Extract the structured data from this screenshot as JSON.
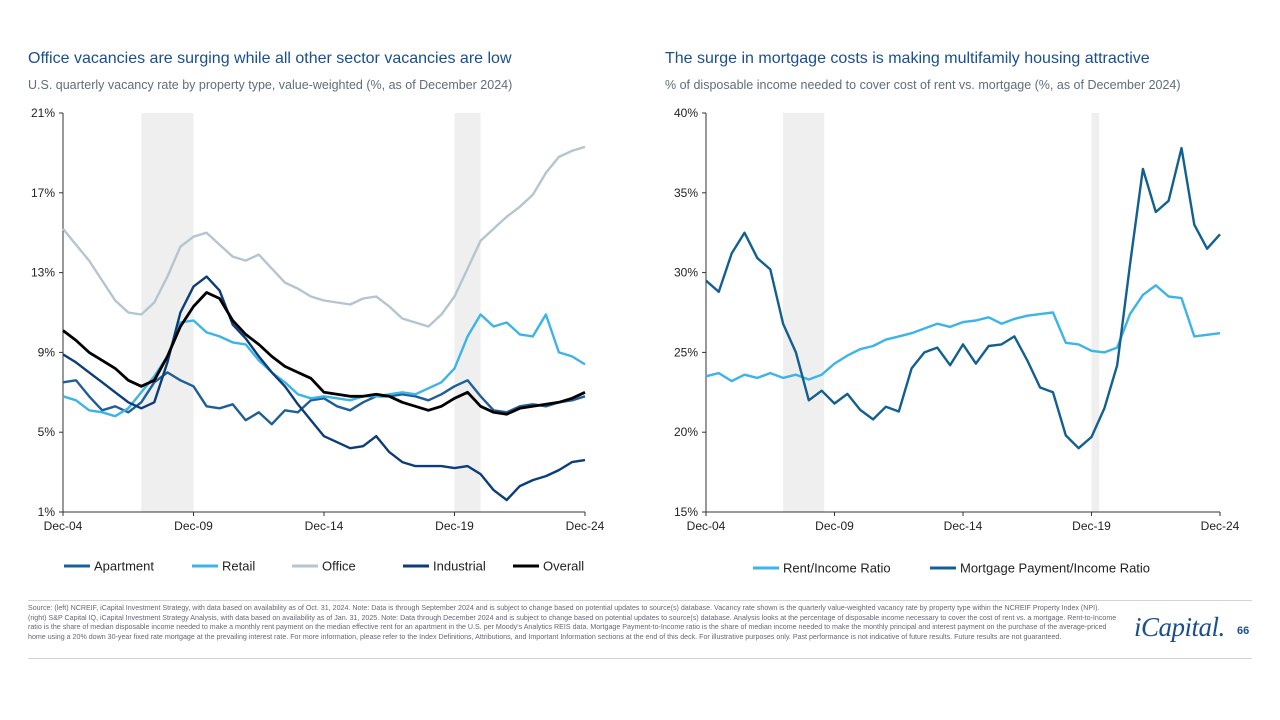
{
  "left": {
    "title": "Office vacancies are surging while all other sector vacancies are low",
    "subtitle": "U.S. quarterly vacancy rate by property type, value-weighted (%, as of December 2024)"
  },
  "right": {
    "title": "The surge in mortgage costs is making multifamily housing attractive",
    "subtitle": "% of disposable income needed to cover cost of rent vs. mortgage (%, as of December 2024)"
  },
  "colors": {
    "apartment": "#1f5f99",
    "retail": "#3cb4e6",
    "office": "#b5c5d0",
    "industrial": "#0c3d78",
    "overall": "#000000",
    "rent_income": "#3cb4e6",
    "mortgage_income": "#12608f",
    "recession": "#efefef",
    "title": "#1a4f8c"
  },
  "chart_data": [
    {
      "type": "line",
      "title": "Office vacancies are surging while all other sector vacancies are low",
      "subtitle": "U.S. quarterly vacancy rate by property type, value-weighted (%, as of December 2024)",
      "xlabel": "",
      "ylabel": "",
      "xlim": [
        2005,
        2025
      ],
      "ylim": [
        1,
        21
      ],
      "yticks": [
        1,
        5,
        9,
        13,
        17,
        21
      ],
      "ytick_labels": [
        "1%",
        "5%",
        "9%",
        "13%",
        "17%",
        "21%"
      ],
      "xticks": [
        2005,
        2010,
        2015,
        2020,
        2025
      ],
      "xtick_labels": [
        "Dec-04",
        "Dec-09",
        "Dec-14",
        "Dec-19",
        "Dec-24"
      ],
      "shaded_periods": [
        [
          2008,
          2010
        ],
        [
          2020,
          2021
        ]
      ],
      "legend_position": "bottom",
      "series": [
        {
          "name": "Apartment",
          "color_key": "apartment",
          "x": [
            2005,
            2005.5,
            2006,
            2006.5,
            2007,
            2007.5,
            2008,
            2008.5,
            2009,
            2009.5,
            2010,
            2010.5,
            2011,
            2011.5,
            2012,
            2012.5,
            2013,
            2013.5,
            2014,
            2014.5,
            2015,
            2015.5,
            2016,
            2016.5,
            2017,
            2017.5,
            2018,
            2018.5,
            2019,
            2019.5,
            2020,
            2020.5,
            2021,
            2021.5,
            2022,
            2022.5,
            2023,
            2023.5,
            2024,
            2024.5,
            2025
          ],
          "y": [
            7.5,
            7.6,
            6.8,
            6.1,
            6.3,
            6.0,
            6.5,
            7.5,
            8.0,
            7.6,
            7.3,
            6.3,
            6.2,
            6.4,
            5.6,
            6.0,
            5.4,
            6.1,
            6.0,
            6.6,
            6.7,
            6.3,
            6.1,
            6.5,
            6.8,
            6.8,
            6.9,
            6.8,
            6.6,
            6.9,
            7.3,
            7.6,
            6.8,
            6.1,
            6.0,
            6.3,
            6.4,
            6.3,
            6.5,
            6.6,
            6.8
          ]
        },
        {
          "name": "Retail",
          "color_key": "retail",
          "x": [
            2005,
            2005.5,
            2006,
            2006.5,
            2007,
            2007.5,
            2008,
            2008.5,
            2009,
            2009.5,
            2010,
            2010.5,
            2011,
            2011.5,
            2012,
            2012.5,
            2013,
            2013.5,
            2014,
            2014.5,
            2015,
            2015.5,
            2016,
            2016.5,
            2017,
            2017.5,
            2018,
            2018.5,
            2019,
            2019.5,
            2020,
            2020.5,
            2021,
            2021.5,
            2022,
            2022.5,
            2023,
            2023.5,
            2024,
            2024.5,
            2025
          ],
          "y": [
            6.8,
            6.6,
            6.1,
            6.0,
            5.8,
            6.2,
            7.0,
            7.8,
            8.8,
            10.5,
            10.6,
            10.0,
            9.8,
            9.5,
            9.4,
            8.6,
            8.0,
            7.5,
            6.9,
            6.7,
            6.8,
            6.7,
            6.6,
            6.8,
            6.8,
            6.9,
            7.0,
            6.9,
            7.2,
            7.5,
            8.2,
            9.8,
            10.9,
            10.3,
            10.5,
            9.9,
            9.8,
            10.9,
            9.0,
            8.8,
            8.4
          ]
        },
        {
          "name": "Office",
          "color_key": "office",
          "x": [
            2005,
            2005.5,
            2006,
            2006.5,
            2007,
            2007.5,
            2008,
            2008.5,
            2009,
            2009.5,
            2010,
            2010.5,
            2011,
            2011.5,
            2012,
            2012.5,
            2013,
            2013.5,
            2014,
            2014.5,
            2015,
            2015.5,
            2016,
            2016.5,
            2017,
            2017.5,
            2018,
            2018.5,
            2019,
            2019.5,
            2020,
            2020.5,
            2021,
            2021.5,
            2022,
            2022.5,
            2023,
            2023.5,
            2024,
            2024.5,
            2025
          ],
          "y": [
            15.2,
            14.4,
            13.6,
            12.6,
            11.6,
            11.0,
            10.9,
            11.5,
            12.8,
            14.3,
            14.8,
            15.0,
            14.4,
            13.8,
            13.6,
            13.9,
            13.2,
            12.5,
            12.2,
            11.8,
            11.6,
            11.5,
            11.4,
            11.7,
            11.8,
            11.3,
            10.7,
            10.5,
            10.3,
            10.9,
            11.8,
            13.2,
            14.6,
            15.2,
            15.8,
            16.3,
            16.9,
            18.0,
            18.8,
            19.1,
            19.3
          ]
        },
        {
          "name": "Industrial",
          "color_key": "industrial",
          "x": [
            2005,
            2005.5,
            2006,
            2006.5,
            2007,
            2007.5,
            2008,
            2008.5,
            2009,
            2009.5,
            2010,
            2010.5,
            2011,
            2011.5,
            2012,
            2012.5,
            2013,
            2013.5,
            2014,
            2014.5,
            2015,
            2015.5,
            2016,
            2016.5,
            2017,
            2017.5,
            2018,
            2018.5,
            2019,
            2019.5,
            2020,
            2020.5,
            2021,
            2021.5,
            2022,
            2022.5,
            2023,
            2023.5,
            2024,
            2024.5,
            2025
          ],
          "y": [
            8.9,
            8.5,
            8.0,
            7.5,
            7.0,
            6.5,
            6.2,
            6.5,
            8.5,
            11.0,
            12.3,
            12.8,
            12.1,
            10.4,
            9.7,
            8.8,
            8.0,
            7.3,
            6.4,
            5.6,
            4.8,
            4.5,
            4.2,
            4.3,
            4.8,
            4.0,
            3.5,
            3.3,
            3.3,
            3.3,
            3.2,
            3.3,
            2.9,
            2.1,
            1.6,
            2.3,
            2.6,
            2.8,
            3.1,
            3.5,
            3.6
          ]
        },
        {
          "name": "Overall",
          "color_key": "overall",
          "x": [
            2005,
            2005.5,
            2006,
            2006.5,
            2007,
            2007.5,
            2008,
            2008.5,
            2009,
            2009.5,
            2010,
            2010.5,
            2011,
            2011.5,
            2012,
            2012.5,
            2013,
            2013.5,
            2014,
            2014.5,
            2015,
            2015.5,
            2016,
            2016.5,
            2017,
            2017.5,
            2018,
            2018.5,
            2019,
            2019.5,
            2020,
            2020.5,
            2021,
            2021.5,
            2022,
            2022.5,
            2023,
            2023.5,
            2024,
            2024.5,
            2025
          ],
          "y": [
            10.1,
            9.6,
            9.0,
            8.6,
            8.2,
            7.6,
            7.3,
            7.6,
            8.8,
            10.3,
            11.3,
            12.0,
            11.7,
            10.6,
            9.9,
            9.4,
            8.8,
            8.3,
            8.0,
            7.7,
            7.0,
            6.9,
            6.8,
            6.8,
            6.9,
            6.8,
            6.5,
            6.3,
            6.1,
            6.3,
            6.7,
            7.0,
            6.3,
            6.0,
            5.9,
            6.2,
            6.3,
            6.4,
            6.5,
            6.7,
            7.0
          ]
        }
      ]
    },
    {
      "type": "line",
      "title": "The surge in mortgage costs is making multifamily housing attractive",
      "subtitle": "% of disposable income needed to cover cost of rent vs. mortgage (%, as of December 2024)",
      "xlabel": "",
      "ylabel": "",
      "xlim": [
        2005,
        2025
      ],
      "ylim": [
        15,
        40
      ],
      "yticks": [
        15,
        20,
        25,
        30,
        35,
        40
      ],
      "ytick_labels": [
        "15%",
        "20%",
        "25%",
        "30%",
        "35%",
        "40%"
      ],
      "xticks": [
        2005,
        2010,
        2015,
        2020,
        2025
      ],
      "xtick_labels": [
        "Dec-04",
        "Dec-09",
        "Dec-14",
        "Dec-19",
        "Dec-24"
      ],
      "shaded_periods": [
        [
          2008,
          2009.6
        ],
        [
          2020,
          2020.3
        ]
      ],
      "legend_position": "bottom",
      "series": [
        {
          "name": "Rent/Income Ratio",
          "color_key": "rent_income",
          "x": [
            2005,
            2005.5,
            2006,
            2006.5,
            2007,
            2007.5,
            2008,
            2008.5,
            2009,
            2009.5,
            2010,
            2010.5,
            2011,
            2011.5,
            2012,
            2012.5,
            2013,
            2013.5,
            2014,
            2014.5,
            2015,
            2015.5,
            2016,
            2016.5,
            2017,
            2017.5,
            2018,
            2018.5,
            2019,
            2019.5,
            2020,
            2020.5,
            2021,
            2021.5,
            2022,
            2022.5,
            2023,
            2023.5,
            2024,
            2024.5,
            2025
          ],
          "y": [
            23.5,
            23.7,
            23.2,
            23.6,
            23.4,
            23.7,
            23.4,
            23.6,
            23.3,
            23.6,
            24.3,
            24.8,
            25.2,
            25.4,
            25.8,
            26.0,
            26.2,
            26.5,
            26.8,
            26.6,
            26.9,
            27.0,
            27.2,
            26.8,
            27.1,
            27.3,
            27.4,
            27.5,
            25.6,
            25.5,
            25.1,
            25.0,
            25.3,
            27.4,
            28.6,
            29.2,
            28.5,
            28.4,
            26.0,
            26.1,
            26.2
          ]
        },
        {
          "name": "Mortgage Payment/Income Ratio",
          "color_key": "mortgage_income",
          "x": [
            2005,
            2005.5,
            2006,
            2006.5,
            2007,
            2007.5,
            2008,
            2008.5,
            2009,
            2009.5,
            2010,
            2010.5,
            2011,
            2011.5,
            2012,
            2012.5,
            2013,
            2013.5,
            2014,
            2014.5,
            2015,
            2015.5,
            2016,
            2016.5,
            2017,
            2017.5,
            2018,
            2018.5,
            2019,
            2019.5,
            2020,
            2020.5,
            2021,
            2021.5,
            2022,
            2022.5,
            2023,
            2023.5,
            2024,
            2024.5,
            2025
          ],
          "y": [
            29.5,
            28.8,
            31.2,
            32.5,
            30.9,
            30.2,
            26.8,
            25.0,
            22.0,
            22.6,
            21.8,
            22.4,
            21.4,
            20.8,
            21.6,
            21.3,
            24.0,
            25.0,
            25.3,
            24.2,
            25.5,
            24.3,
            25.4,
            25.5,
            26.0,
            24.5,
            22.8,
            22.5,
            19.8,
            19.0,
            19.7,
            21.5,
            24.2,
            30.5,
            36.5,
            33.8,
            34.5,
            37.8,
            33.0,
            31.5,
            32.4
          ]
        }
      ]
    }
  ],
  "footnote": "Source: (left) NCREIF, iCapital Investment Strategy, with data based on availability as of Oct. 31, 2024. Note: Data is through September 2024 and is subject to change based on potential updates to source(s) database. Vacancy rate shown is the quarterly value-weighted vacancy rate by property type within the NCREIF Property Index (NPI). (right) S&P Capital IQ, iCapital Investment Strategy Analysis, with data based on availability as of Jan. 31, 2025. Note: Data through December 2024 and is subject to change based on potential updates to source(s) database. Analysis looks at the percentage of disposable income necessary to cover the cost of rent vs. a mortgage. Rent-to-Income ratio is the share of median disposable income needed to make a monthly rent payment on the median effective rent for an apartment in the U.S. per Moody's Analytics REIS data. Mortgage Payment-to-Income ratio is the share of median income needed to make the monthly principal and interest payment on the purchase of the average-priced home using a 20% down 30-year fixed rate mortgage at the prevailing interest rate. For more information, please refer to the Index Definitions, Attributions, and Important Information sections at the end of this deck. For illustrative purposes only. Past performance is not indicative of future results. Future results are not guaranteed.",
  "brand": "iCapital.",
  "page_number": "66"
}
